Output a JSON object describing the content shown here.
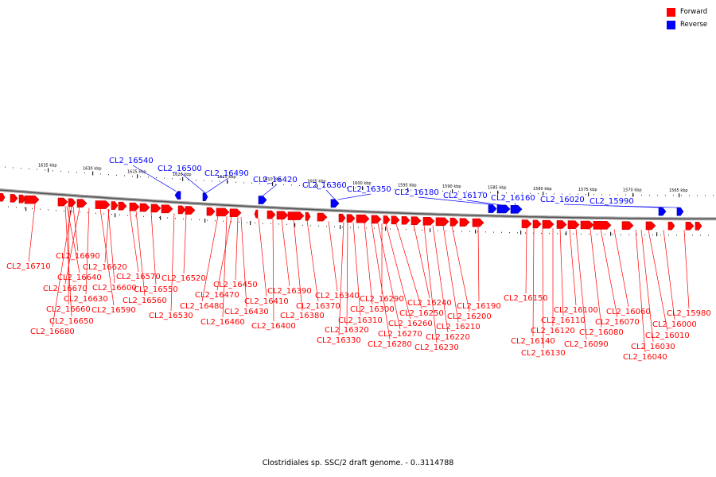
{
  "legend": {
    "forward_label": "Forward",
    "reverse_label": "Reverse",
    "forward_color": "#ff0000",
    "reverse_color": "#0000ff"
  },
  "footer": "Clostridiales sp. SSC/2 draft genome. - 0..3114788",
  "scale_labels": [
    "1635 kbp",
    "1630 kbp",
    "1625 kbp",
    "1620 kbp",
    "1615 kbp",
    "1610 kbp",
    "1605 kbp",
    "1600 kbp",
    "1595 kbp",
    "1590 kbp",
    "1585 kbp",
    "1580 kbp",
    "1575 kbp",
    "1570 kbp",
    "1565 kbp"
  ],
  "reverse_genes": [
    "CL2_16540",
    "CL2_16500",
    "CL2_16490",
    "CL2_16420",
    "CL2_16360",
    "CL2_16350",
    "CL2_16180",
    "CL2_16170",
    "CL2_16160",
    "CL2_16020",
    "CL2_15990"
  ],
  "forward_genes": [
    "CL2_16710",
    "CL2_16690",
    "CL2_16680",
    "CL2_16670",
    "CL2_16660",
    "CL2_16650",
    "CL2_16640",
    "CL2_16630",
    "CL2_16620",
    "CL2_16600",
    "CL2_16590",
    "CL2_16570",
    "CL2_16560",
    "CL2_16550",
    "CL2_16530",
    "CL2_16520",
    "CL2_16480",
    "CL2_16470",
    "CL2_16460",
    "CL2_16450",
    "CL2_16430",
    "CL2_16410",
    "CL2_16400",
    "CL2_16390",
    "CL2_16380",
    "CL2_16370",
    "CL2_16340",
    "CL2_16330",
    "CL2_16320",
    "CL2_16310",
    "CL2_16300",
    "CL2_16290",
    "CL2_16280",
    "CL2_16270",
    "CL2_16260",
    "CL2_16250",
    "CL2_16240",
    "CL2_16230",
    "CL2_16220",
    "CL2_16210",
    "CL2_16200",
    "CL2_16190",
    "CL2_16150",
    "CL2_16140",
    "CL2_16130",
    "CL2_16120",
    "CL2_16110",
    "CL2_16100",
    "CL2_16090",
    "CL2_16080",
    "CL2_16070",
    "CL2_16060",
    "CL2_16040",
    "CL2_16030",
    "CL2_16010",
    "CL2_16000",
    "CL2_15980"
  ]
}
